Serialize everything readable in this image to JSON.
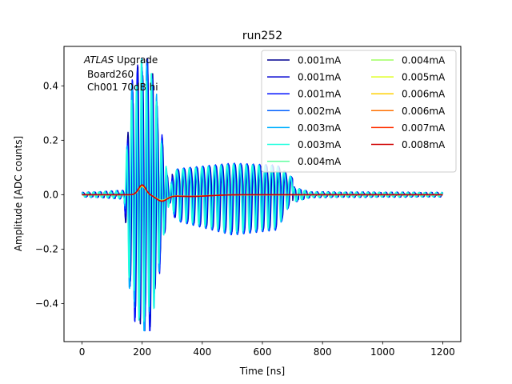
{
  "chart_data": {
    "type": "line",
    "title": "run252",
    "xlabel": "Time [ns]",
    "ylabel": "Amplitude [ADC counts]",
    "xlim": [
      -60,
      1260
    ],
    "ylim": [
      -0.54,
      0.545
    ],
    "xticks": [
      0,
      200,
      400,
      600,
      800,
      1000,
      1200
    ],
    "yticks": [
      -0.4,
      -0.2,
      0.0,
      0.2,
      0.4
    ],
    "xtick_labels": [
      "0",
      "200",
      "400",
      "600",
      "800",
      "1000",
      "1200"
    ],
    "ytick_labels": [
      "−0.4",
      "−0.2",
      "0.0",
      "0.2",
      "0.4"
    ],
    "grid": false,
    "legend_position": "top-right",
    "legend_columns": 2,
    "annotation": {
      "line1_italic": "ATLAS",
      "line1_rest": " Upgrade",
      "line2": "Board260",
      "line3": "Ch001 70dB hi"
    },
    "series": [
      {
        "name": "0.001mA",
        "color": "#00008f",
        "kind": "oscillating"
      },
      {
        "name": "0.001mA",
        "color": "#0000d0",
        "kind": "oscillating"
      },
      {
        "name": "0.001mA",
        "color": "#0010ff",
        "kind": "oscillating"
      },
      {
        "name": "0.002mA",
        "color": "#0060ff",
        "kind": "oscillating"
      },
      {
        "name": "0.003mA",
        "color": "#00b0ff",
        "kind": "oscillating"
      },
      {
        "name": "0.003mA",
        "color": "#20ffdf",
        "kind": "oscillating"
      },
      {
        "name": "0.004mA",
        "color": "#60ff9f",
        "kind": "smooth"
      },
      {
        "name": "0.004mA",
        "color": "#9fff60",
        "kind": "smooth"
      },
      {
        "name": "0.005mA",
        "color": "#dfff20",
        "kind": "smooth"
      },
      {
        "name": "0.006mA",
        "color": "#ffd000",
        "kind": "smooth"
      },
      {
        "name": "0.006mA",
        "color": "#ff7000",
        "kind": "smooth"
      },
      {
        "name": "0.007mA",
        "color": "#ff3000",
        "kind": "smooth"
      },
      {
        "name": "0.008mA",
        "color": "#d00000",
        "kind": "smooth"
      }
    ],
    "features": {
      "oscillating_envelope": [
        [
          0,
          0.008
        ],
        [
          140,
          0.015
        ],
        [
          160,
          0.37
        ],
        [
          180,
          0.45
        ],
        [
          200,
          0.5
        ],
        [
          230,
          0.48
        ],
        [
          260,
          0.25
        ],
        [
          290,
          0.03
        ],
        [
          310,
          0.07
        ],
        [
          330,
          0.075
        ],
        [
          500,
          0.1
        ],
        [
          650,
          0.09
        ],
        [
          700,
          0.03
        ],
        [
          760,
          0.01
        ],
        [
          1200,
          0.008
        ]
      ],
      "smooth_pulse_peak": 0.033,
      "smooth_pulse_time": 200,
      "smooth_undershoot": -0.02,
      "smooth_undershoot_time": 265
    }
  }
}
